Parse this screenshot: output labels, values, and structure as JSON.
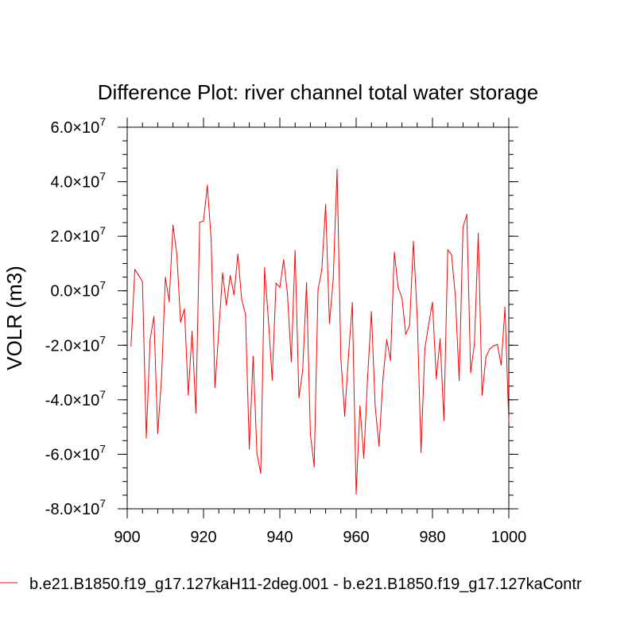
{
  "chart_data": {
    "type": "line",
    "title": "Difference Plot: river channel total water storage",
    "xlabel": "",
    "ylabel": "VOLR  (m3)",
    "xlim": [
      900,
      1000
    ],
    "ylim": [
      -80000000,
      60000000
    ],
    "x_ticks": [
      {
        "value": 900,
        "label": "900"
      },
      {
        "value": 920,
        "label": "920"
      },
      {
        "value": 940,
        "label": "940"
      },
      {
        "value": 960,
        "label": "960"
      },
      {
        "value": 980,
        "label": "980"
      },
      {
        "value": 1000,
        "label": "1000"
      }
    ],
    "y_ticks": [
      {
        "value": 60000000,
        "mantissa": "6.0",
        "exp": "7"
      },
      {
        "value": 40000000,
        "mantissa": "4.0",
        "exp": "7"
      },
      {
        "value": 20000000,
        "mantissa": "2.0",
        "exp": "7"
      },
      {
        "value": 0,
        "mantissa": "0.0",
        "exp": "7"
      },
      {
        "value": -20000000,
        "mantissa": "-2.0",
        "exp": "7"
      },
      {
        "value": -40000000,
        "mantissa": "-4.0",
        "exp": "7"
      },
      {
        "value": -60000000,
        "mantissa": "-6.0",
        "exp": "7"
      },
      {
        "value": -80000000,
        "mantissa": "-8.0",
        "exp": "7"
      }
    ],
    "tick_separator": "×10",
    "series": [
      {
        "name": "b.e21.B1850.f19_g17.127kaH11-2deg.001 - b.e21.B1850.f19_g17.127kaContr",
        "color": "#ff0000",
        "x": [
          901,
          902,
          903,
          904,
          905,
          906,
          907,
          908,
          909,
          910,
          911,
          912,
          913,
          914,
          915,
          916,
          917,
          918,
          919,
          920,
          921,
          922,
          923,
          924,
          925,
          926,
          927,
          928,
          929,
          930,
          931,
          932,
          933,
          934,
          935,
          936,
          937,
          938,
          939,
          940,
          941,
          942,
          943,
          944,
          945,
          946,
          947,
          948,
          949,
          950,
          951,
          952,
          953,
          954,
          955,
          956,
          957,
          958,
          959,
          960,
          961,
          962,
          963,
          964,
          965,
          966,
          967,
          968,
          969,
          970,
          971,
          972,
          973,
          974,
          975,
          976,
          977,
          978,
          979,
          980,
          981,
          982,
          983,
          984,
          985,
          986,
          987,
          988,
          989,
          990,
          991,
          992,
          993,
          994,
          995,
          996,
          997,
          998,
          999,
          1000
        ],
        "values": [
          -20300000,
          7800000,
          5700000,
          3300000,
          -54000000,
          -18000000,
          -9400000,
          -52400000,
          -32000000,
          4900000,
          -3900000,
          24100000,
          13500000,
          -11500000,
          -6700000,
          -38200000,
          -14800000,
          -44900000,
          25100000,
          25600000,
          38700000,
          18900000,
          -35500000,
          -15000000,
          6500000,
          -5300000,
          5600000,
          -1500000,
          13400000,
          -3200000,
          -8600000,
          -58100000,
          -24000000,
          -59700000,
          -67000000,
          8400000,
          -10600000,
          -32700000,
          2800000,
          1200000,
          11400000,
          -1200000,
          -26000000,
          14700000,
          -39300000,
          -29100000,
          2900000,
          -52600000,
          -64600000,
          300000,
          7600000,
          31600000,
          -12000000,
          4500000,
          44500000,
          -25000000,
          -46000000,
          -23600000,
          -4400000,
          -74600000,
          -42300000,
          -61400000,
          -31800000,
          -7700000,
          -42600000,
          -57000000,
          -32700000,
          -18000000,
          -25600000,
          14100000,
          1200000,
          -2600000,
          -16000000,
          -12700000,
          18100000,
          -9100000,
          -59300000,
          -21300000,
          -12300000,
          -4200000,
          -32300000,
          -17600000,
          -47600000,
          15000000,
          13200000,
          -2100000,
          -32900000,
          23400000,
          28000000,
          -30100000,
          -19400000,
          21100000,
          -38300000,
          -24500000,
          -21300000,
          -20200000,
          -19700000,
          -27300000,
          -6100000,
          -48100000
        ]
      }
    ],
    "legend_position": "bottom-left"
  }
}
